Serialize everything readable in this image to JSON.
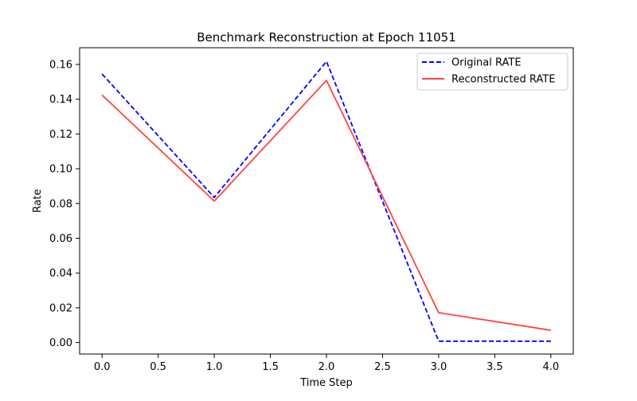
{
  "chart_data": {
    "type": "line",
    "title": "Benchmark Reconstruction at Epoch 11051",
    "xlabel": "Time Step",
    "ylabel": "Rate",
    "xlim": [
      -0.2,
      4.2
    ],
    "ylim": [
      -0.0066,
      0.1696
    ],
    "xticks": [
      0.0,
      0.5,
      1.0,
      1.5,
      2.0,
      2.5,
      3.0,
      3.5,
      4.0
    ],
    "xtick_labels": [
      "0.0",
      "0.5",
      "1.0",
      "1.5",
      "2.0",
      "2.5",
      "3.0",
      "3.5",
      "4.0"
    ],
    "yticks": [
      0.0,
      0.02,
      0.04,
      0.06,
      0.08,
      0.1,
      0.12,
      0.14,
      0.16
    ],
    "ytick_labels": [
      "0.00",
      "0.02",
      "0.04",
      "0.06",
      "0.08",
      "0.10",
      "0.12",
      "0.14",
      "0.16"
    ],
    "grid": false,
    "legend_position": "top-right",
    "x": [
      0,
      1,
      2,
      3,
      4
    ],
    "series": [
      {
        "name": "Original RATE",
        "values": [
          0.1545,
          0.0835,
          0.1617,
          0.0008,
          0.0008
        ],
        "color": "#0000ff",
        "style": "dashed"
      },
      {
        "name": "Reconstructed RATE",
        "values": [
          0.1424,
          0.0814,
          0.1508,
          0.0172,
          0.0071
        ],
        "color": "#ff4444",
        "style": "solid"
      }
    ]
  }
}
